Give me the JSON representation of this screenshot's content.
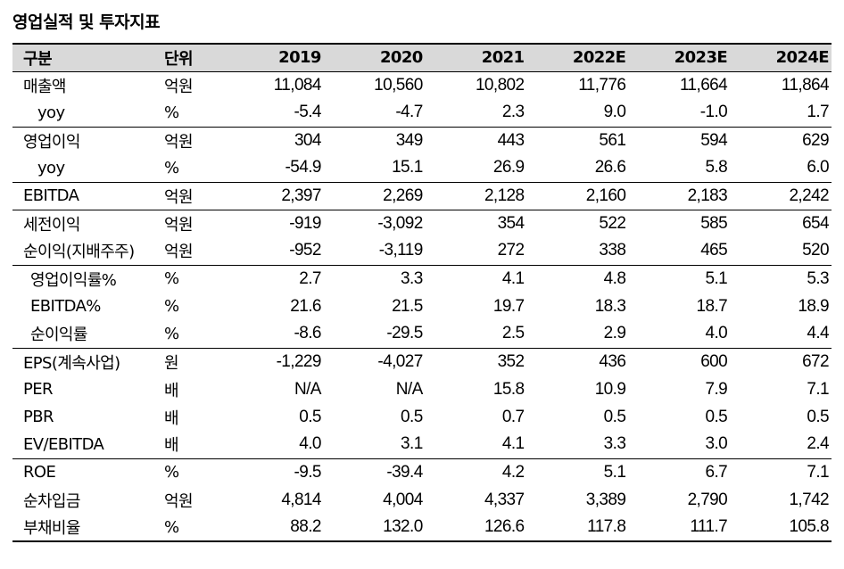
{
  "title": "영업실적 및 투자지표",
  "header": {
    "label": "구분",
    "unit": "단위",
    "years": [
      "2019",
      "2020",
      "2021",
      "2022E",
      "2023E",
      "2024E"
    ]
  },
  "rows": [
    {
      "label": "매출액",
      "unit": "억원",
      "values": [
        "11,084",
        "10,560",
        "10,802",
        "11,776",
        "11,664",
        "11,864"
      ]
    },
    {
      "label": "yoy",
      "unit": "%",
      "values": [
        "-5.4",
        "-4.7",
        "2.3",
        "9.0",
        "-1.0",
        "1.7"
      ]
    },
    {
      "label": "영업이익",
      "unit": "억원",
      "values": [
        "304",
        "349",
        "443",
        "561",
        "594",
        "629"
      ]
    },
    {
      "label": "yoy",
      "unit": "%",
      "values": [
        "-54.9",
        "15.1",
        "26.9",
        "26.6",
        "5.8",
        "6.0"
      ]
    },
    {
      "label": "EBITDA",
      "unit": "억원",
      "values": [
        "2,397",
        "2,269",
        "2,128",
        "2,160",
        "2,183",
        "2,242"
      ]
    },
    {
      "label": "세전이익",
      "unit": "억원",
      "values": [
        "-919",
        "-3,092",
        "354",
        "522",
        "585",
        "654"
      ]
    },
    {
      "label": "순이익(지배주주)",
      "unit": "억원",
      "values": [
        "-952",
        "-3,119",
        "272",
        "338",
        "465",
        "520"
      ]
    },
    {
      "label": "영업이익률%",
      "unit": "%",
      "values": [
        "2.7",
        "3.3",
        "4.1",
        "4.8",
        "5.1",
        "5.3"
      ]
    },
    {
      "label": "EBITDA%",
      "unit": "%",
      "values": [
        "21.6",
        "21.5",
        "19.7",
        "18.3",
        "18.7",
        "18.9"
      ]
    },
    {
      "label": "순이익률",
      "unit": "%",
      "values": [
        "-8.6",
        "-29.5",
        "2.5",
        "2.9",
        "4.0",
        "4.4"
      ]
    },
    {
      "label": "EPS(계속사업)",
      "unit": "원",
      "values": [
        "-1,229",
        "-4,027",
        "352",
        "436",
        "600",
        "672"
      ]
    },
    {
      "label": "PER",
      "unit": "배",
      "values": [
        "N/A",
        "N/A",
        "15.8",
        "10.9",
        "7.9",
        "7.1"
      ]
    },
    {
      "label": "PBR",
      "unit": "배",
      "values": [
        "0.5",
        "0.5",
        "0.7",
        "0.5",
        "0.5",
        "0.5"
      ]
    },
    {
      "label": "EV/EBITDA",
      "unit": "배",
      "values": [
        "4.0",
        "3.1",
        "4.1",
        "3.3",
        "3.0",
        "2.4"
      ]
    },
    {
      "label": "ROE",
      "unit": "%",
      "values": [
        "-9.5",
        "-39.4",
        "4.2",
        "5.1",
        "6.7",
        "7.1"
      ]
    },
    {
      "label": "순차입금",
      "unit": "억원",
      "values": [
        "4,814",
        "4,004",
        "4,337",
        "3,389",
        "2,790",
        "1,742"
      ]
    },
    {
      "label": "부채비율",
      "unit": "%",
      "values": [
        "88.2",
        "132.0",
        "126.6",
        "117.8",
        "111.7",
        "105.8"
      ]
    }
  ]
}
